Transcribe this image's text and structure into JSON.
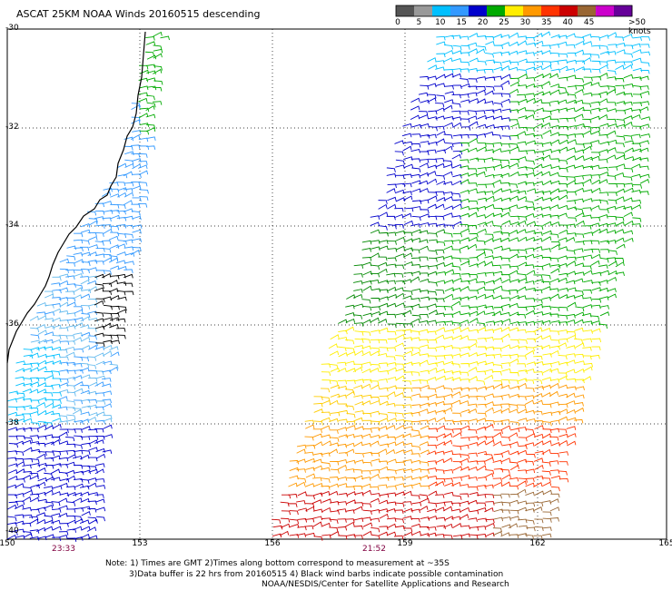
{
  "title": "ASCAT 25KM NOAA Winds 20160515 descending",
  "colorbar": {
    "labels": [
      "0",
      "5",
      "10",
      "15",
      "20",
      "25",
      "30",
      "35",
      "40",
      "45",
      ">50 knots"
    ],
    "colors": [
      "#555555",
      "#999999",
      "#00c0ff",
      "#3399ff",
      "#0000cc",
      "#00aa00",
      "#ffee00",
      "#ff9900",
      "#ff3300",
      "#cc0000",
      "#996633",
      "#cc00cc",
      "#660099"
    ]
  },
  "axes": {
    "lat_labels": [
      "-30",
      "-32",
      "-34",
      "-36",
      "-38",
      "-40"
    ],
    "lon_labels": [
      "150",
      "153",
      "156",
      "159",
      "162",
      "165"
    ]
  },
  "pass_times": [
    "23:33",
    "21:52"
  ],
  "notes": {
    "line1": "Note: 1) Times are GMT 2)Times along bottom correspond to measurement at ~35S",
    "line2": "3)Data buffer is 22 hrs from 20160515 4) Black wind barbs indicate possible contamination",
    "line3": "NOAA/NESDIS/Center for Satellite Applications and Research"
  }
}
